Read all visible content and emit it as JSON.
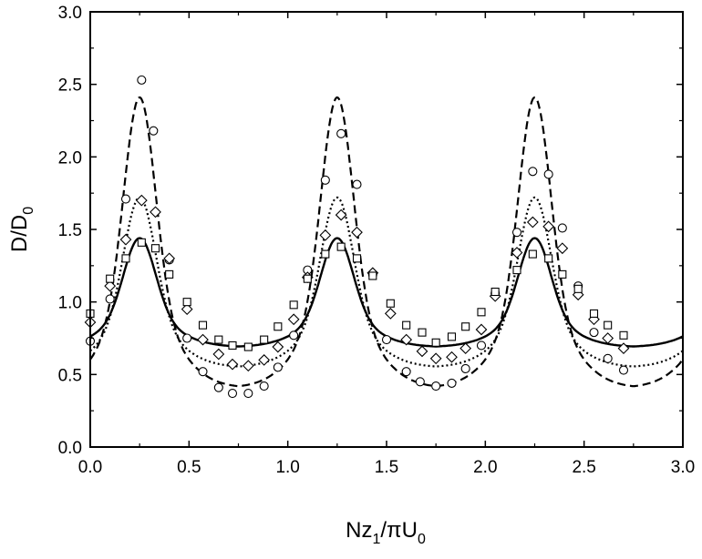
{
  "chart_data": {
    "type": "scatter",
    "title": "",
    "xlabel": {
      "main": "Nz",
      "sub1": "1",
      "mid": "/πU",
      "sub2": "0"
    },
    "ylabel": {
      "main": "D/D",
      "sub": "0"
    },
    "xlim": [
      0,
      3
    ],
    "ylim": [
      0,
      3
    ],
    "x_ticks": [
      "0.0",
      "0.5",
      "1.0",
      "1.5",
      "2.0",
      "2.5",
      "3.0"
    ],
    "y_ticks": [
      "0.0",
      "0.5",
      "1.0",
      "1.5",
      "2.0",
      "2.5",
      "3.0"
    ],
    "grid": false,
    "legend": "none",
    "series": [
      {
        "marker": "circle",
        "points": [
          [
            0.0,
            0.73
          ],
          [
            0.1,
            1.02
          ],
          [
            0.18,
            1.71
          ],
          [
            0.26,
            2.53
          ],
          [
            0.32,
            2.18
          ],
          [
            0.4,
            1.29
          ],
          [
            0.49,
            0.75
          ],
          [
            0.57,
            0.52
          ],
          [
            0.65,
            0.41
          ],
          [
            0.72,
            0.37
          ],
          [
            0.8,
            0.37
          ],
          [
            0.88,
            0.42
          ],
          [
            0.95,
            0.55
          ],
          [
            1.03,
            0.77
          ],
          [
            1.1,
            1.22
          ],
          [
            1.19,
            1.84
          ],
          [
            1.27,
            2.16
          ],
          [
            1.35,
            1.81
          ],
          [
            1.43,
            1.19
          ],
          [
            1.5,
            0.74
          ],
          [
            1.6,
            0.52
          ],
          [
            1.67,
            0.45
          ],
          [
            1.75,
            0.42
          ],
          [
            1.83,
            0.44
          ],
          [
            1.9,
            0.54
          ],
          [
            1.98,
            0.7
          ],
          [
            2.05,
            1.06
          ],
          [
            2.16,
            1.48
          ],
          [
            2.24,
            1.9
          ],
          [
            2.32,
            1.88
          ],
          [
            2.39,
            1.51
          ],
          [
            2.47,
            1.11
          ],
          [
            2.55,
            0.79
          ],
          [
            2.62,
            0.61
          ],
          [
            2.7,
            0.53
          ]
        ]
      },
      {
        "marker": "diamond",
        "points": [
          [
            0.0,
            0.86
          ],
          [
            0.1,
            1.11
          ],
          [
            0.18,
            1.43
          ],
          [
            0.26,
            1.7
          ],
          [
            0.33,
            1.62
          ],
          [
            0.4,
            1.3
          ],
          [
            0.49,
            0.95
          ],
          [
            0.57,
            0.74
          ],
          [
            0.65,
            0.64
          ],
          [
            0.72,
            0.57
          ],
          [
            0.8,
            0.56
          ],
          [
            0.88,
            0.6
          ],
          [
            0.95,
            0.69
          ],
          [
            1.03,
            0.88
          ],
          [
            1.1,
            1.17
          ],
          [
            1.19,
            1.46
          ],
          [
            1.27,
            1.6
          ],
          [
            1.35,
            1.48
          ],
          [
            1.43,
            1.2
          ],
          [
            1.52,
            0.92
          ],
          [
            1.6,
            0.74
          ],
          [
            1.68,
            0.66
          ],
          [
            1.75,
            0.61
          ],
          [
            1.83,
            0.62
          ],
          [
            1.9,
            0.68
          ],
          [
            1.98,
            0.81
          ],
          [
            2.05,
            1.04
          ],
          [
            2.16,
            1.34
          ],
          [
            2.24,
            1.55
          ],
          [
            2.32,
            1.52
          ],
          [
            2.39,
            1.37
          ],
          [
            2.47,
            1.05
          ],
          [
            2.55,
            0.88
          ],
          [
            2.62,
            0.75
          ],
          [
            2.7,
            0.68
          ]
        ]
      },
      {
        "marker": "square",
        "points": [
          [
            0.0,
            0.92
          ],
          [
            0.1,
            1.16
          ],
          [
            0.18,
            1.3
          ],
          [
            0.26,
            1.41
          ],
          [
            0.33,
            1.37
          ],
          [
            0.4,
            1.19
          ],
          [
            0.49,
            1.0
          ],
          [
            0.57,
            0.84
          ],
          [
            0.65,
            0.74
          ],
          [
            0.72,
            0.7
          ],
          [
            0.8,
            0.69
          ],
          [
            0.88,
            0.74
          ],
          [
            0.95,
            0.83
          ],
          [
            1.03,
            0.98
          ],
          [
            1.1,
            1.16
          ],
          [
            1.19,
            1.33
          ],
          [
            1.27,
            1.38
          ],
          [
            1.35,
            1.3
          ],
          [
            1.43,
            1.18
          ],
          [
            1.52,
            0.99
          ],
          [
            1.6,
            0.84
          ],
          [
            1.68,
            0.79
          ],
          [
            1.75,
            0.72
          ],
          [
            1.83,
            0.76
          ],
          [
            1.9,
            0.83
          ],
          [
            1.98,
            0.93
          ],
          [
            2.05,
            1.07
          ],
          [
            2.16,
            1.22
          ],
          [
            2.24,
            1.33
          ],
          [
            2.32,
            1.3
          ],
          [
            2.39,
            1.19
          ],
          [
            2.47,
            1.09
          ],
          [
            2.55,
            0.92
          ],
          [
            2.62,
            0.84
          ],
          [
            2.7,
            0.77
          ]
        ]
      }
    ],
    "curves": [
      {
        "style": "dashed",
        "peak": 2.41,
        "trough": 0.41
      },
      {
        "style": "dotted",
        "peak": 1.72,
        "trough": 0.55
      },
      {
        "style": "solid",
        "peak": 1.44,
        "trough": 0.69
      }
    ]
  }
}
